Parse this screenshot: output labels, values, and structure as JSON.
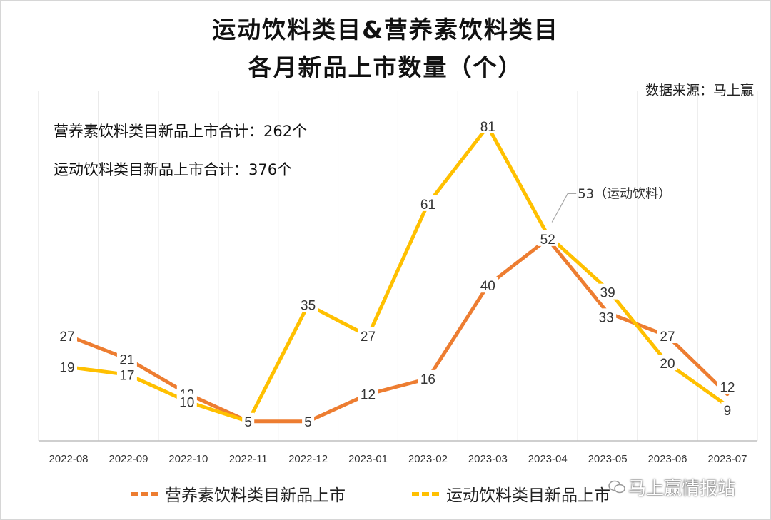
{
  "title_line1": "运动饮料类目&营养素饮料类目",
  "title_line2": "各月新品上市数量（个）",
  "source": "数据来源：马上赢",
  "notes": {
    "nutrition_total": "营养素饮料类目新品上市合计：262个",
    "sports_total": "运动饮料类目新品上市合计：376个"
  },
  "callout": "53（运动饮料）",
  "watermark": "马上赢情报站",
  "colors": {
    "nutrition": "#ED7D31",
    "sports": "#FFC000",
    "grid": "#D9D9D9",
    "axis": "#BFBFBF"
  },
  "chart_data": {
    "type": "line",
    "categories": [
      "2022-08",
      "2022-09",
      "2022-10",
      "2022-11",
      "2022-12",
      "2023-01",
      "2023-02",
      "2023-03",
      "2023-04",
      "2023-05",
      "2023-06",
      "2023-07"
    ],
    "series": [
      {
        "name": "营养素饮料类目新品上市",
        "values": [
          27,
          21,
          12,
          5,
          5,
          12,
          16,
          40,
          52,
          33,
          27,
          12
        ]
      },
      {
        "name": "运动饮料类目新品上市",
        "values": [
          19,
          17,
          10,
          5,
          35,
          27,
          61,
          81,
          53,
          39,
          20,
          9
        ]
      }
    ],
    "ylim": [
      0,
      90
    ],
    "grid": true,
    "legend": "bottom"
  }
}
